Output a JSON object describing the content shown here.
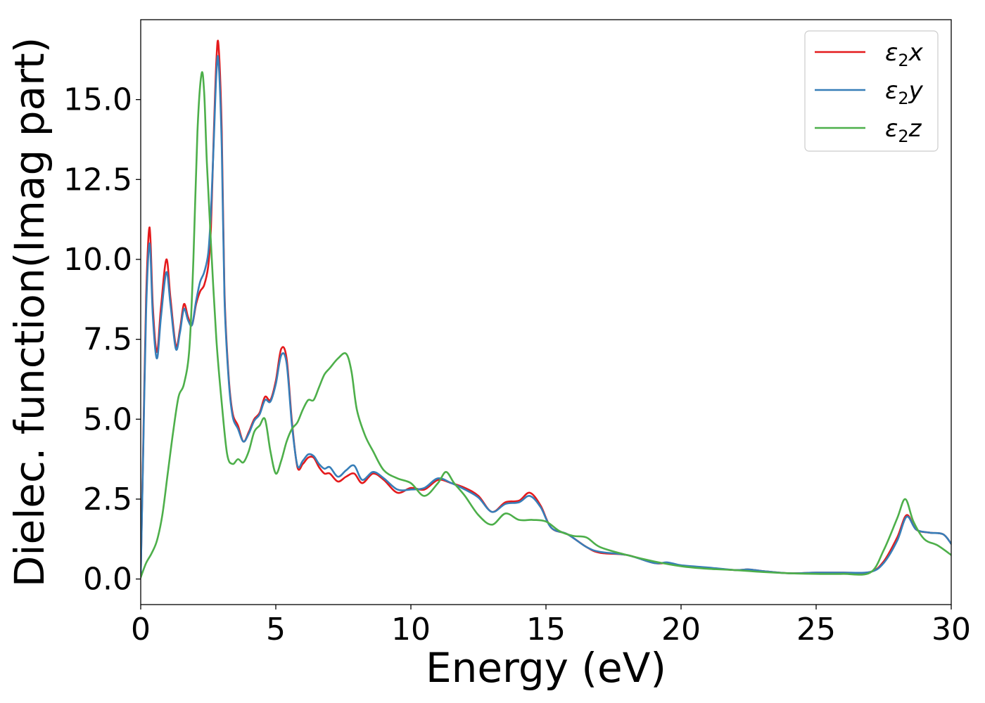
{
  "chart_data": {
    "type": "line",
    "xlabel": "Energy (eV)",
    "ylabel": "Dielec. function(Imag part)",
    "xlim": [
      0,
      30
    ],
    "ylim": [
      -0.8,
      17.5
    ],
    "xticks": [
      0,
      5,
      10,
      15,
      20,
      25,
      30
    ],
    "xtick_labels": [
      "0",
      "5",
      "10",
      "15",
      "20",
      "25",
      "30"
    ],
    "yticks": [
      0,
      2.5,
      5,
      7.5,
      10,
      12.5,
      15
    ],
    "ytick_labels": [
      "0.0",
      "2.5",
      "5.0",
      "7.5",
      "10.0",
      "12.5",
      "15.0"
    ],
    "grid": false,
    "legend_position": "top-right",
    "series": [
      {
        "name": "ε₂x",
        "legend": {
          "base": "ε",
          "sub": "2",
          "suffix": "x"
        },
        "color": "#e41a1c",
        "x": [
          0,
          0.1,
          0.2,
          0.33,
          0.45,
          0.6,
          0.75,
          0.95,
          1.1,
          1.3,
          1.45,
          1.6,
          1.75,
          1.9,
          2.05,
          2.2,
          2.35,
          2.5,
          2.6,
          2.7,
          2.8,
          2.88,
          3.0,
          3.1,
          3.25,
          3.4,
          3.6,
          3.8,
          4.0,
          4.2,
          4.4,
          4.6,
          4.8,
          5.0,
          5.2,
          5.4,
          5.6,
          5.8,
          6.0,
          6.2,
          6.4,
          6.6,
          6.8,
          7.0,
          7.3,
          7.6,
          7.9,
          8.2,
          8.6,
          9.0,
          9.5,
          10.0,
          10.5,
          11.0,
          11.5,
          12.0,
          12.5,
          13.0,
          13.5,
          14.0,
          14.4,
          14.8,
          15.2,
          15.8,
          16.5,
          17.0,
          18.0,
          19.0,
          19.5,
          20.0,
          21.0,
          22.0,
          22.5,
          23.0,
          24.0,
          25.0,
          26.0,
          27.0,
          27.5,
          28.0,
          28.35,
          28.7,
          29.2,
          29.7,
          30.0
        ],
        "values": [
          0.1,
          4.5,
          8.8,
          11.0,
          8.5,
          7.1,
          8.5,
          10.0,
          8.8,
          7.3,
          7.8,
          8.6,
          8.2,
          7.95,
          8.6,
          9.0,
          9.2,
          9.8,
          11.0,
          13.8,
          16.2,
          16.7,
          14.0,
          9.0,
          6.4,
          5.2,
          4.8,
          4.3,
          4.6,
          5.0,
          5.2,
          5.7,
          5.6,
          6.2,
          7.2,
          6.9,
          4.9,
          3.5,
          3.6,
          3.8,
          3.8,
          3.5,
          3.3,
          3.3,
          3.05,
          3.2,
          3.3,
          3.0,
          3.3,
          3.1,
          2.7,
          2.85,
          2.8,
          3.1,
          3.0,
          2.85,
          2.6,
          2.1,
          2.4,
          2.45,
          2.7,
          2.3,
          1.6,
          1.4,
          1.0,
          0.82,
          0.75,
          0.5,
          0.5,
          0.42,
          0.35,
          0.28,
          0.3,
          0.25,
          0.18,
          0.2,
          0.2,
          0.22,
          0.55,
          1.3,
          2.0,
          1.55,
          1.45,
          1.4,
          1.1
        ]
      },
      {
        "name": "ε₂y",
        "legend": {
          "base": "ε",
          "sub": "2",
          "suffix": "y"
        },
        "color": "#377eb8",
        "x": [
          0,
          0.1,
          0.2,
          0.33,
          0.45,
          0.6,
          0.75,
          0.95,
          1.1,
          1.3,
          1.45,
          1.6,
          1.75,
          1.9,
          2.05,
          2.2,
          2.35,
          2.5,
          2.6,
          2.7,
          2.8,
          2.88,
          3.0,
          3.1,
          3.25,
          3.4,
          3.6,
          3.8,
          4.0,
          4.2,
          4.4,
          4.6,
          4.8,
          5.0,
          5.2,
          5.4,
          5.6,
          5.8,
          6.0,
          6.2,
          6.4,
          6.6,
          6.8,
          7.0,
          7.3,
          7.6,
          7.9,
          8.2,
          8.6,
          9.0,
          9.5,
          10.0,
          10.5,
          11.0,
          11.5,
          12.0,
          12.5,
          13.0,
          13.5,
          14.0,
          14.4,
          14.8,
          15.2,
          15.8,
          16.5,
          17.0,
          18.0,
          19.0,
          19.5,
          20.0,
          21.0,
          22.0,
          22.5,
          23.0,
          24.0,
          25.0,
          26.0,
          27.0,
          27.5,
          28.0,
          28.35,
          28.7,
          29.2,
          29.7,
          30.0
        ],
        "values": [
          0.1,
          4.3,
          8.4,
          10.5,
          8.2,
          6.9,
          8.2,
          9.6,
          8.6,
          7.2,
          7.7,
          8.45,
          8.1,
          7.95,
          8.7,
          9.3,
          9.6,
          10.2,
          11.5,
          13.6,
          15.8,
          16.2,
          13.5,
          8.8,
          6.3,
          5.1,
          4.7,
          4.3,
          4.55,
          4.95,
          5.15,
          5.6,
          5.55,
          6.1,
          7.0,
          6.75,
          4.8,
          3.55,
          3.7,
          3.9,
          3.85,
          3.6,
          3.45,
          3.5,
          3.2,
          3.4,
          3.55,
          3.1,
          3.35,
          3.15,
          2.8,
          2.8,
          2.85,
          3.15,
          3.0,
          2.8,
          2.55,
          2.1,
          2.35,
          2.4,
          2.6,
          2.25,
          1.6,
          1.4,
          1.0,
          0.85,
          0.75,
          0.5,
          0.52,
          0.43,
          0.36,
          0.28,
          0.3,
          0.25,
          0.18,
          0.2,
          0.2,
          0.22,
          0.5,
          1.2,
          1.95,
          1.55,
          1.45,
          1.4,
          1.1
        ]
      },
      {
        "name": "ε₂z",
        "legend": {
          "base": "ε",
          "sub": "2",
          "suffix": "z"
        },
        "color": "#4daf4a",
        "x": [
          0,
          0.2,
          0.4,
          0.6,
          0.8,
          1.0,
          1.2,
          1.4,
          1.6,
          1.8,
          1.95,
          2.1,
          2.25,
          2.35,
          2.45,
          2.6,
          2.8,
          3.0,
          3.2,
          3.4,
          3.6,
          3.8,
          4.0,
          4.2,
          4.4,
          4.6,
          4.8,
          5.0,
          5.2,
          5.4,
          5.6,
          5.8,
          6.0,
          6.2,
          6.4,
          6.6,
          6.8,
          7.0,
          7.3,
          7.6,
          7.8,
          8.0,
          8.3,
          8.6,
          9.0,
          9.5,
          10.0,
          10.5,
          11.0,
          11.3,
          11.6,
          12.0,
          12.5,
          13.0,
          13.5,
          14.0,
          14.5,
          15.0,
          15.5,
          16.0,
          16.5,
          17.0,
          18.0,
          19.0,
          20.0,
          21.0,
          22.0,
          23.0,
          24.0,
          25.0,
          26.0,
          27.0,
          27.5,
          28.0,
          28.3,
          28.6,
          29.0,
          29.5,
          30.0
        ],
        "values": [
          0.05,
          0.5,
          0.8,
          1.2,
          2.0,
          3.3,
          4.6,
          5.7,
          6.1,
          7.2,
          10.0,
          14.0,
          15.8,
          15.2,
          13.0,
          10.5,
          7.5,
          5.5,
          3.9,
          3.6,
          3.75,
          3.65,
          4.0,
          4.6,
          4.8,
          5.0,
          4.0,
          3.3,
          3.7,
          4.3,
          4.7,
          4.9,
          5.3,
          5.6,
          5.6,
          6.0,
          6.4,
          6.6,
          6.9,
          7.05,
          6.5,
          5.3,
          4.5,
          4.0,
          3.4,
          3.15,
          3.0,
          2.6,
          3.0,
          3.35,
          3.0,
          2.6,
          2.0,
          1.7,
          2.05,
          1.85,
          1.85,
          1.8,
          1.5,
          1.35,
          1.3,
          1.0,
          0.75,
          0.55,
          0.4,
          0.32,
          0.28,
          0.22,
          0.18,
          0.16,
          0.16,
          0.2,
          0.9,
          1.9,
          2.5,
          1.8,
          1.25,
          1.05,
          0.75
        ]
      }
    ]
  }
}
